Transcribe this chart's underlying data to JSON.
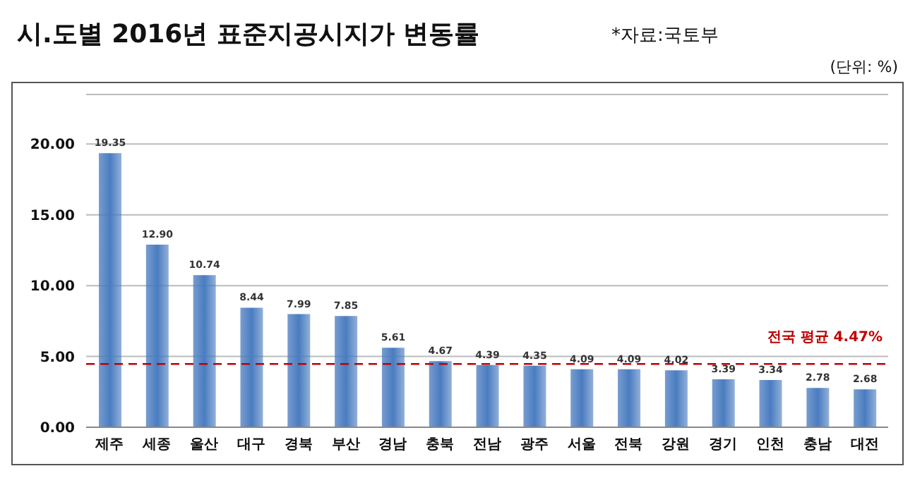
{
  "chart_data": {
    "type": "bar",
    "title": "시.도별 2016년 표준지공시지가 변동률",
    "annotations": [
      "*자료:국토부",
      "(단위: %)"
    ],
    "categories": [
      "제주",
      "세종",
      "울산",
      "대구",
      "경북",
      "부산",
      "경남",
      "충북",
      "전남",
      "광주",
      "서울",
      "전북",
      "강원",
      "경기",
      "인천",
      "충남",
      "대전"
    ],
    "values": [
      19.35,
      12.9,
      10.74,
      8.44,
      7.99,
      7.85,
      5.61,
      4.67,
      4.39,
      4.35,
      4.09,
      4.09,
      4.02,
      3.39,
      3.34,
      2.78,
      2.68
    ],
    "value_labels": [
      "19.35",
      "12.90",
      "10.74",
      "8.44",
      "7.99",
      "7.85",
      "5.61",
      "4.67",
      "4.39",
      "4.35",
      "4.09",
      "4.09",
      "4.02",
      "3.39",
      "3.34",
      "2.78",
      "2.68"
    ],
    "color": "#4a7cc0",
    "ylim": [
      0,
      23.5
    ],
    "yticks": [
      {
        "value": 0,
        "label": "0.00"
      },
      {
        "value": 5,
        "label": "5.00"
      },
      {
        "value": 10,
        "label": "10.00"
      },
      {
        "value": 15,
        "label": "15.00"
      },
      {
        "value": 20,
        "label": "20.00"
      }
    ],
    "grid": "y",
    "ref_lines": [
      {
        "axis": "y",
        "value": 4.47,
        "label": "전국 평균 4.47%",
        "color": "#c00000",
        "line_style": "dashed"
      }
    ]
  }
}
